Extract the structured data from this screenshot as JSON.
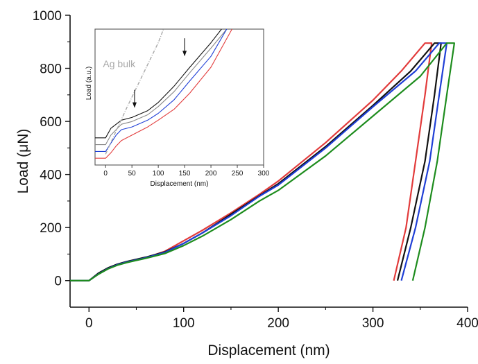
{
  "chart_data": [
    {
      "type": "line",
      "title": "",
      "xlabel": "Displacement (nm)",
      "ylabel": "Load (μN)",
      "xlim": [
        -20,
        400
      ],
      "ylim": [
        -100,
        1000
      ],
      "x_ticks": [
        0,
        100,
        200,
        300,
        400
      ],
      "x_tick_labels": [
        "0",
        "100",
        "200",
        "300",
        "400"
      ],
      "y_ticks": [
        0,
        200,
        400,
        600,
        800,
        1000
      ],
      "y_tick_labels": [
        "0",
        "200",
        "400",
        "600",
        "800",
        "1000"
      ],
      "grid": false,
      "colors": [
        "#e23b3b",
        "#111111",
        "#1f3fd6",
        "#1d8c1d"
      ],
      "series": [
        {
          "color": "#e23b3b",
          "x": [
            -20,
            0,
            10,
            20,
            30,
            40,
            50,
            60,
            80,
            100,
            120,
            150,
            180,
            200,
            250,
            300,
            330,
            355,
            362,
            355,
            345,
            335,
            322
          ],
          "y": [
            0,
            0,
            25,
            45,
            60,
            70,
            78,
            86,
            110,
            150,
            190,
            255,
            325,
            375,
            520,
            680,
            790,
            895,
            895,
            700,
            450,
            200,
            0
          ]
        },
        {
          "color": "#111111",
          "x": [
            -20,
            0,
            10,
            20,
            30,
            40,
            50,
            60,
            80,
            100,
            120,
            150,
            180,
            200,
            250,
            300,
            340,
            365,
            372,
            365,
            355,
            340,
            326
          ],
          "y": [
            0,
            0,
            28,
            48,
            62,
            72,
            80,
            88,
            108,
            140,
            180,
            250,
            320,
            365,
            505,
            660,
            790,
            895,
            895,
            700,
            450,
            200,
            0
          ]
        },
        {
          "color": "#1f3fd6",
          "x": [
            -20,
            0,
            10,
            20,
            30,
            40,
            50,
            60,
            80,
            100,
            120,
            150,
            180,
            200,
            250,
            300,
            345,
            370,
            378,
            370,
            360,
            345,
            330
          ],
          "y": [
            0,
            0,
            25,
            45,
            60,
            70,
            78,
            86,
            106,
            140,
            180,
            245,
            318,
            360,
            500,
            655,
            790,
            895,
            895,
            700,
            450,
            200,
            0
          ]
        },
        {
          "color": "#1d8c1d",
          "x": [
            -20,
            0,
            10,
            20,
            30,
            40,
            50,
            60,
            80,
            100,
            120,
            150,
            180,
            200,
            250,
            300,
            350,
            378,
            386,
            378,
            368,
            355,
            342
          ],
          "y": [
            0,
            0,
            24,
            44,
            58,
            68,
            76,
            84,
            102,
            132,
            168,
            230,
            300,
            340,
            470,
            620,
            770,
            895,
            895,
            700,
            450,
            200,
            0
          ]
        }
      ]
    },
    {
      "type": "line",
      "title": "",
      "xlabel": "Displacement (nm)",
      "ylabel": "Load (a.u.)",
      "xlim": [
        -20,
        300
      ],
      "ylim": [
        0,
        1
      ],
      "x_ticks": [
        0,
        50,
        100,
        150,
        200,
        250,
        300
      ],
      "x_tick_labels": [
        "0",
        "50",
        "100",
        "150",
        "200",
        "250",
        "300"
      ],
      "annotations": [
        {
          "text": "Ag bulk",
          "x": -5,
          "y": 0.72
        },
        {
          "text": "",
          "type": "arrow",
          "x": 55,
          "y": 0.42
        },
        {
          "text": "",
          "type": "arrow",
          "x": 150,
          "y": 0.8
        }
      ],
      "series": [
        {
          "color": "#111111",
          "x": [
            -20,
            0,
            10,
            20,
            30,
            50,
            80,
            100,
            130,
            160,
            200,
            220
          ],
          "y": [
            0.2,
            0.2,
            0.27,
            0.3,
            0.33,
            0.35,
            0.4,
            0.46,
            0.58,
            0.72,
            0.9,
            1.0
          ]
        },
        {
          "color": "#888888",
          "x": [
            -20,
            0,
            10,
            20,
            30,
            50,
            80,
            100,
            130,
            160,
            200,
            230
          ],
          "y": [
            0.15,
            0.15,
            0.22,
            0.26,
            0.3,
            0.32,
            0.37,
            0.43,
            0.54,
            0.68,
            0.86,
            1.0
          ]
        },
        {
          "color": "#1f3fd6",
          "x": [
            -20,
            0,
            10,
            20,
            30,
            50,
            80,
            100,
            130,
            160,
            200,
            230
          ],
          "y": [
            0.1,
            0.1,
            0.16,
            0.22,
            0.26,
            0.28,
            0.33,
            0.38,
            0.48,
            0.62,
            0.8,
            1.0
          ]
        },
        {
          "color": "#e23b3b",
          "x": [
            -20,
            0,
            10,
            20,
            30,
            50,
            80,
            100,
            130,
            160,
            200,
            240
          ],
          "y": [
            0.05,
            0.05,
            0.09,
            0.14,
            0.18,
            0.22,
            0.28,
            0.33,
            0.41,
            0.53,
            0.72,
            1.0
          ]
        },
        {
          "color": "#a8a8a8",
          "dashed": true,
          "x": [
            0,
            20,
            40,
            60,
            80,
            100,
            110
          ],
          "y": [
            0.08,
            0.25,
            0.42,
            0.58,
            0.74,
            0.9,
            1.0
          ]
        }
      ]
    }
  ]
}
